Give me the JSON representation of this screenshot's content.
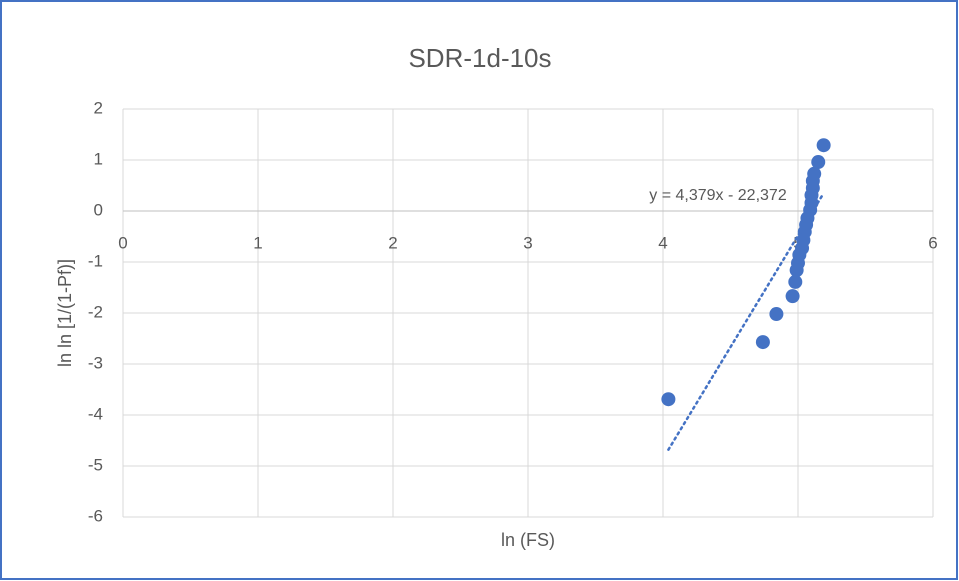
{
  "chart_data": {
    "type": "scatter",
    "title": "SDR-1d-10s",
    "x_label": "ln (FS)",
    "y_label": "ln ln [1/(1-Pf)]",
    "color": "#4472c4",
    "grid": true,
    "xlim": [
      0,
      6
    ],
    "ylim": [
      -6,
      2
    ],
    "xticks": [
      0,
      1,
      2,
      3,
      4,
      5,
      6
    ],
    "yticks": [
      -6,
      -5,
      -4,
      -3,
      -2,
      -1,
      0,
      1,
      2
    ],
    "x": [
      5.19,
      5.15,
      5.12,
      5.11,
      5.11,
      5.1,
      5.1,
      5.09,
      5.07,
      5.06,
      5.05,
      5.04,
      5.03,
      5.01,
      5.0,
      4.99,
      4.98,
      4.96,
      4.84,
      4.74,
      4.04
    ],
    "values": [
      1.29,
      0.96,
      0.73,
      0.59,
      0.45,
      0.31,
      0.16,
      0.02,
      -0.14,
      -0.27,
      -0.41,
      -0.57,
      -0.73,
      -0.86,
      -1.02,
      -1.16,
      -1.39,
      -1.67,
      -2.02,
      -2.57,
      -3.69
    ],
    "trendline": {
      "label": "y = 4,379x - 22,372",
      "x": [
        4.04,
        5.19
      ],
      "values": [
        -4.68,
        0.35
      ]
    }
  }
}
